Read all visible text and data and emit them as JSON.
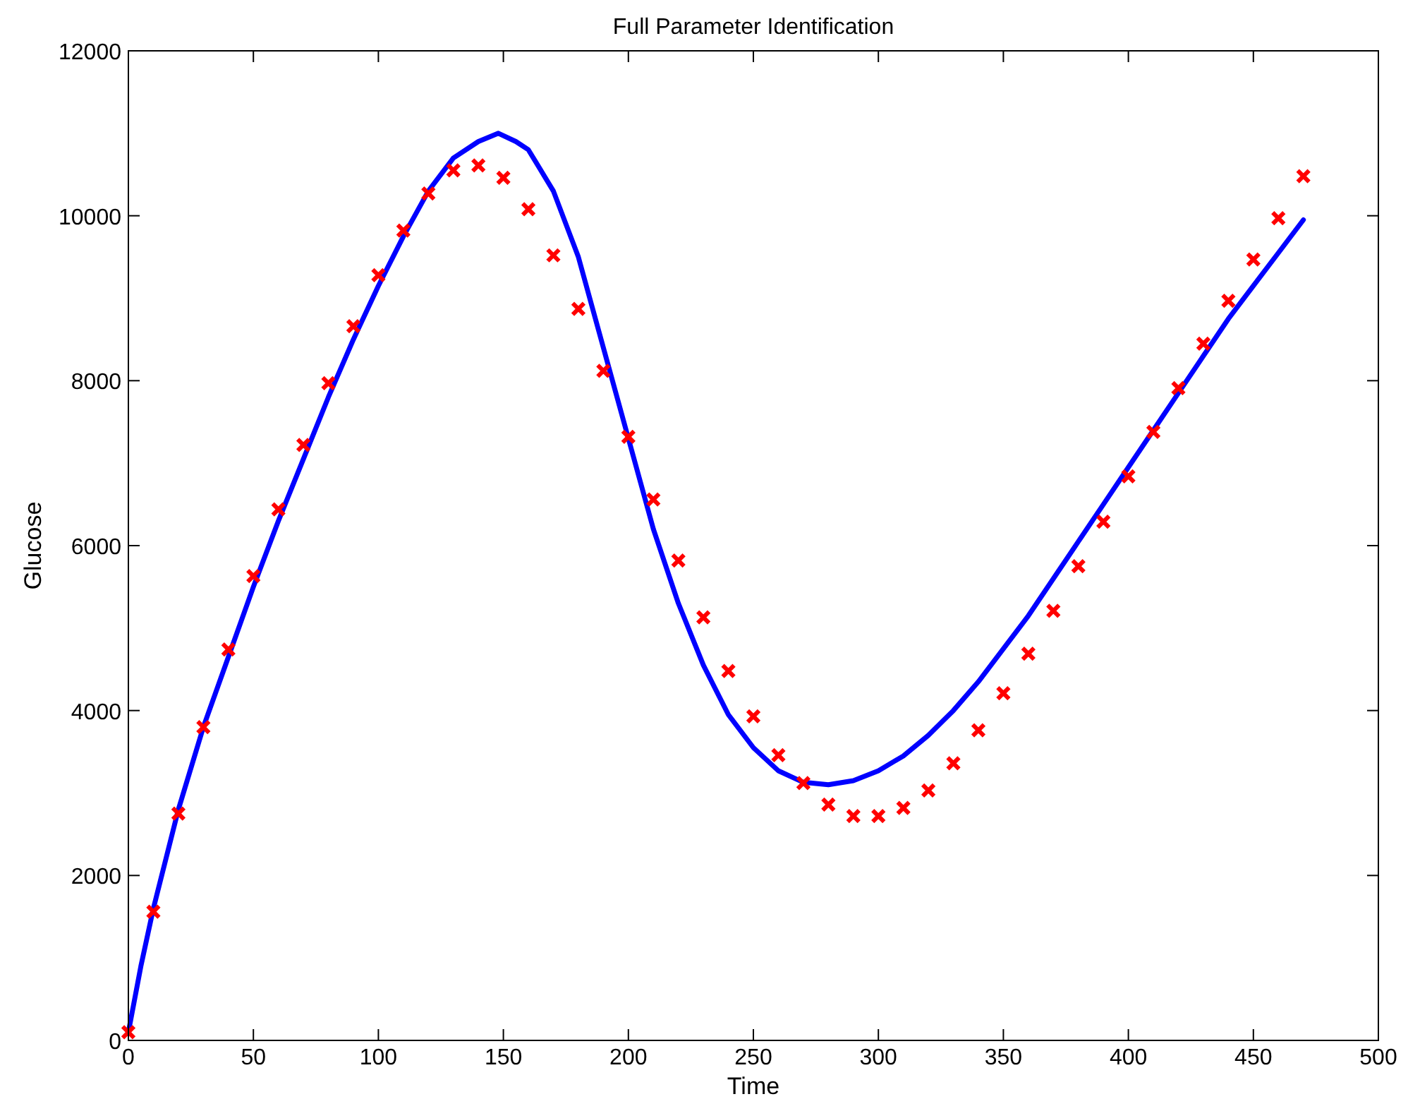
{
  "chart_data": {
    "type": "line",
    "title": "Full Parameter Identification",
    "xlabel": "Time",
    "ylabel": "Glucose",
    "xlim": [
      0,
      500
    ],
    "ylim": [
      0,
      12000
    ],
    "xticks": [
      0,
      50,
      100,
      150,
      200,
      250,
      300,
      350,
      400,
      450,
      500
    ],
    "yticks": [
      0,
      2000,
      4000,
      6000,
      8000,
      10000,
      12000
    ],
    "grid": false,
    "series": [
      {
        "color": "#0000ff",
        "marker": "none",
        "line_style": "solid",
        "x": [
          0,
          5,
          10,
          20,
          30,
          40,
          50,
          60,
          70,
          80,
          90,
          100,
          110,
          120,
          130,
          140,
          148,
          155,
          160,
          170,
          180,
          190,
          200,
          210,
          220,
          230,
          240,
          250,
          260,
          270,
          280,
          290,
          300,
          310,
          320,
          330,
          340,
          350,
          360,
          370,
          380,
          390,
          400,
          410,
          420,
          430,
          440,
          450,
          460,
          470
        ],
        "values": [
          100,
          900,
          1600,
          2800,
          3800,
          4650,
          5500,
          6300,
          7050,
          7800,
          8500,
          9150,
          9750,
          10300,
          10700,
          10900,
          11000,
          10900,
          10800,
          10300,
          9500,
          8400,
          7300,
          6200,
          5300,
          4550,
          3950,
          3550,
          3270,
          3130,
          3100,
          3150,
          3270,
          3450,
          3700,
          4000,
          4350,
          4750,
          5150,
          5600,
          6050,
          6500,
          6950,
          7400,
          7850,
          8300,
          8750,
          9150,
          9550,
          9950
        ]
      },
      {
        "type": "scatter",
        "color": "#ff0000",
        "marker": "cross",
        "x": [
          0,
          10,
          20,
          30,
          40,
          50,
          60,
          70,
          80,
          90,
          100,
          110,
          120,
          130,
          140,
          150,
          160,
          170,
          180,
          190,
          200,
          210,
          220,
          230,
          240,
          250,
          260,
          270,
          280,
          290,
          300,
          310,
          320,
          330,
          340,
          350,
          360,
          370,
          380,
          390,
          400,
          410,
          420,
          430,
          440,
          450,
          460,
          470
        ],
        "values": [
          100,
          1560,
          2750,
          3800,
          4740,
          5630,
          6440,
          7220,
          7970,
          8660,
          9280,
          9820,
          10270,
          10550,
          10610,
          10460,
          10080,
          9520,
          8870,
          8120,
          7320,
          6560,
          5820,
          5130,
          4480,
          3930,
          3460,
          3120,
          2860,
          2720,
          2720,
          2820,
          3030,
          3360,
          3760,
          4210,
          4690,
          5210,
          5750,
          6290,
          6840,
          7380,
          7910,
          8450,
          8970,
          9470,
          9970,
          10480
        ]
      }
    ]
  }
}
